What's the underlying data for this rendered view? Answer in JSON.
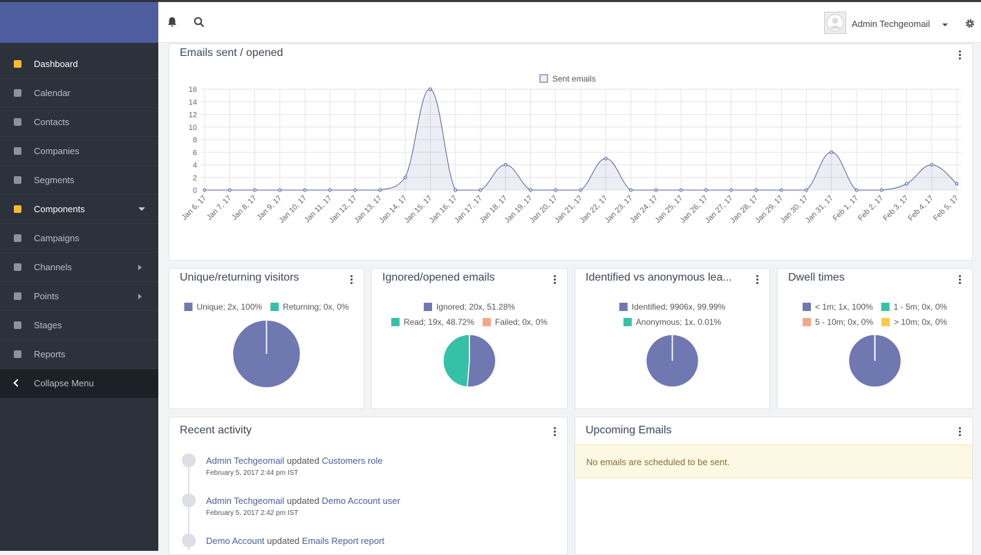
{
  "sidebar": {
    "menu": [
      "Dashboard",
      "Calendar",
      "Contacts",
      "Companies",
      "Segments",
      "Components",
      "Campaigns",
      "Channels",
      "Points",
      "Stages",
      "Reports"
    ],
    "collapse": "Collapse Menu"
  },
  "header": {
    "user": "Admin Techgeomail"
  },
  "chart_data": [
    {
      "type": "line",
      "title": "Emails sent / opened",
      "categories": [
        "Jan 6, 17",
        "Jan 7, 17",
        "Jan 8, 17",
        "Jan 9, 17",
        "Jan 10, 17",
        "Jan 11, 17",
        "Jan 12, 17",
        "Jan 13, 17",
        "Jan 14, 17",
        "Jan 15, 17",
        "Jan 16, 17",
        "Jan 17, 17",
        "Jan 18, 17",
        "Jan 19, 17",
        "Jan 20, 17",
        "Jan 21, 17",
        "Jan 22, 17",
        "Jan 23, 17",
        "Jan 24, 17",
        "Jan 25, 17",
        "Jan 26, 17",
        "Jan 27, 17",
        "Jan 28, 17",
        "Jan 29, 17",
        "Jan 30, 17",
        "Jan 31, 17",
        "Feb 1, 17",
        "Feb 2, 17",
        "Feb 3, 17",
        "Feb 4, 17",
        "Feb 5, 17"
      ],
      "series": [
        {
          "name": "Sent emails",
          "color": "#4e5d9d",
          "values": [
            0,
            0,
            0,
            0,
            0,
            0,
            0,
            0,
            2,
            16,
            0,
            0,
            4,
            0,
            0,
            0,
            5,
            0,
            0,
            0,
            0,
            0,
            0,
            0,
            0,
            6,
            0,
            0,
            1,
            4,
            1
          ]
        }
      ],
      "ylim": [
        0,
        16
      ],
      "yticks": [
        0,
        2,
        4,
        6,
        8,
        10,
        12,
        14,
        16
      ],
      "grid": true
    },
    {
      "type": "pie",
      "title": "Unique/returning visitors",
      "categories": [
        "Unique; 2x, 100%",
        "Returning; 0x, 0%"
      ],
      "values": [
        100,
        0
      ],
      "colors": [
        "#6f78b1",
        "#35c0a8"
      ]
    },
    {
      "type": "pie",
      "title": "Ignored/opened emails",
      "categories": [
        "Ignored; 20x, 51.28%",
        "Read; 19x, 48.72%",
        "Failed; 0x, 0%"
      ],
      "values": [
        51.28,
        48.72,
        0
      ],
      "colors": [
        "#6f78b1",
        "#35c0a8",
        "#f7a68a"
      ]
    },
    {
      "type": "pie",
      "title": "Identified vs anonymous lea...",
      "categories": [
        "Identified; 9906x, 99.99%",
        "Anonymous; 1x, 0.01%"
      ],
      "values": [
        99.99,
        0.01
      ],
      "colors": [
        "#6f78b1",
        "#35c0a8"
      ]
    },
    {
      "type": "pie",
      "title": "Dwell times",
      "categories": [
        "< 1m; 1x, 100%",
        "1 - 5m; 0x, 0%",
        "5 - 10m; 0x, 0%",
        "> 10m; 0x, 0%"
      ],
      "values": [
        100,
        0,
        0,
        0
      ],
      "colors": [
        "#6f78b1",
        "#35c0a8",
        "#f7a68a",
        "#fcc94b"
      ]
    }
  ],
  "recent_activity": {
    "title": "Recent activity",
    "items": [
      {
        "actor": "Admin Techgeomail",
        "action": "updated",
        "object": "Customers role",
        "time": "February 5, 2017 2:44 pm IST"
      },
      {
        "actor": "Admin Techgeomail",
        "action": "updated",
        "object": "Demo Account user",
        "time": "February 5, 2017 2:42 pm IST"
      },
      {
        "actor": "Demo Account",
        "action": "updated",
        "object": "Emails Report report"
      }
    ]
  },
  "upcoming_emails": {
    "title": "Upcoming Emails",
    "message": "No emails are scheduled to be sent."
  }
}
